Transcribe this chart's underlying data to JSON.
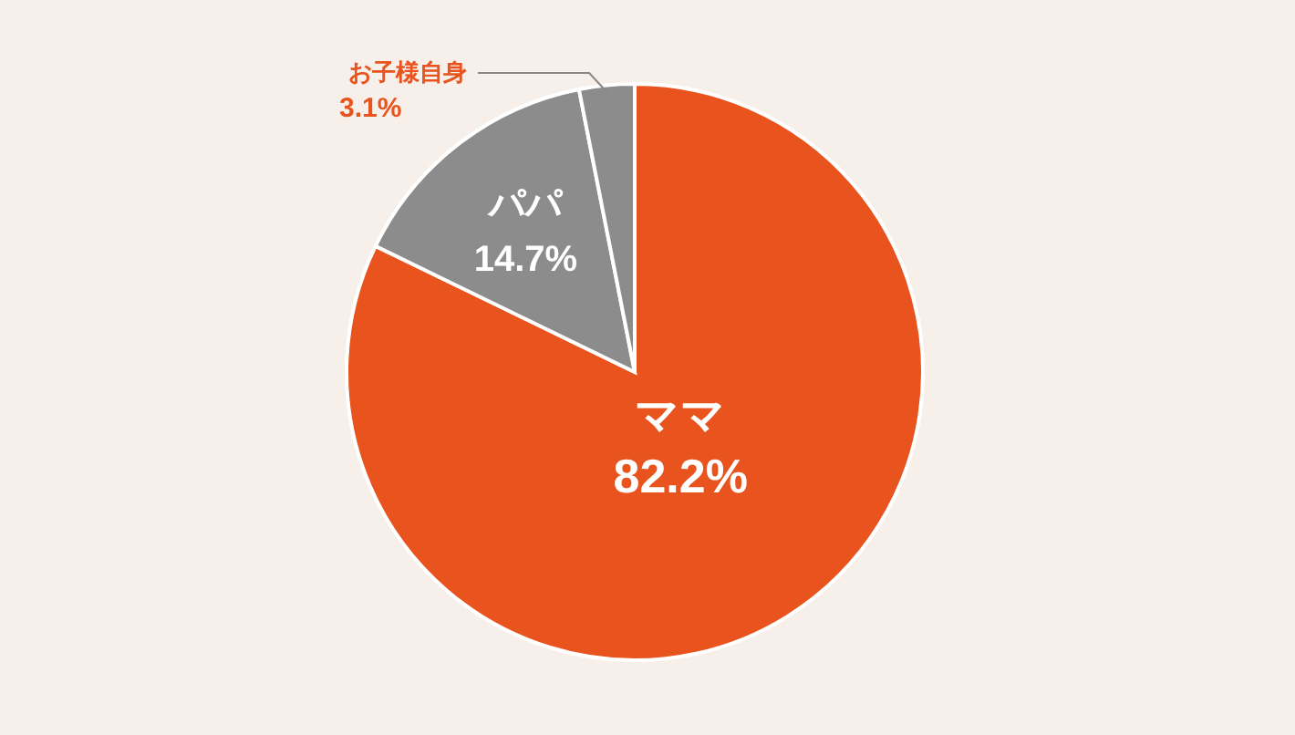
{
  "chart_data": {
    "type": "pie",
    "categories": [
      "ママ",
      "パパ",
      "お子様自身"
    ],
    "values": [
      82.2,
      14.7,
      3.1
    ],
    "colors": [
      "#e8531e",
      "#8c8c8c",
      "#8c8c8c"
    ],
    "value_labels": [
      "82.2%",
      "14.7%",
      "3.1%"
    ]
  }
}
